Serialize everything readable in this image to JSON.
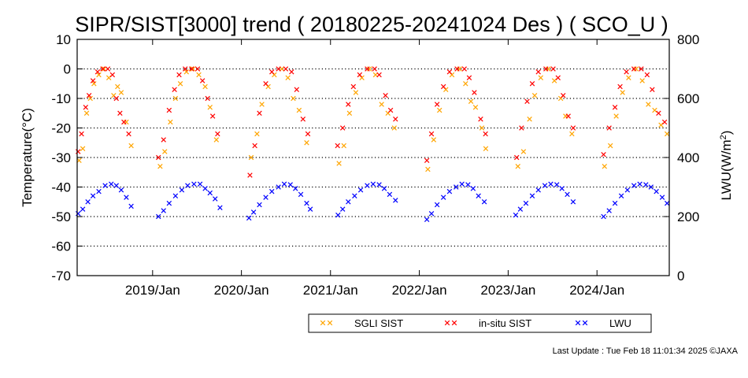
{
  "chart_data": {
    "type": "scatter",
    "title": "SIPR/SIST[3000] trend ( 20180225-20241024 Des ) ( SCO_U )",
    "ylabel": "Temperature(°C)",
    "y2label_main": "LWU(W/m",
    "y2label_sup": "2",
    "y2label_end": ")",
    "ylim": [
      -70,
      10
    ],
    "y_ticks": [
      "10",
      "0",
      "-10",
      "-20",
      "-30",
      "-40",
      "-50",
      "-60",
      "-70"
    ],
    "y2lim": [
      0,
      800
    ],
    "y2_ticks": [
      "800",
      "600",
      "400",
      "200",
      "0"
    ],
    "xlim": [
      "2018-02-25",
      "2024-10-24"
    ],
    "x_ticks": [
      "2019/Jan",
      "2020/Jan",
      "2021/Jan",
      "2022/Jan",
      "2023/Jan",
      "2024/Jan"
    ],
    "x_tick_dates": [
      "2019-01-01",
      "2020-01-01",
      "2021-01-01",
      "2022-01-01",
      "2023-01-01",
      "2024-01-01"
    ],
    "grid": "dotted horizontal lines",
    "legend_position": "bottom-right",
    "marker": "×",
    "series": [
      {
        "name": "SGLI SIST",
        "axis": "left",
        "color": "#ffa500",
        "points": [
          [
            "2018-03-05",
            -31
          ],
          [
            "2018-03-20",
            -27
          ],
          [
            "2018-04-05",
            -15
          ],
          [
            "2018-04-20",
            -10
          ],
          [
            "2018-05-05",
            -5
          ],
          [
            "2018-05-25",
            -2
          ],
          [
            "2018-06-15",
            0
          ],
          [
            "2018-07-05",
            -3
          ],
          [
            "2018-07-25",
            -9
          ],
          [
            "2018-08-10",
            -6
          ],
          [
            "2018-08-25",
            -8
          ],
          [
            "2018-09-15",
            -18
          ],
          [
            "2018-10-05",
            -26
          ],
          [
            "2019-02-01",
            -33
          ],
          [
            "2019-02-20",
            -28
          ],
          [
            "2019-03-15",
            -18
          ],
          [
            "2019-04-05",
            -10
          ],
          [
            "2019-04-25",
            -5
          ],
          [
            "2019-05-20",
            -1
          ],
          [
            "2019-06-15",
            0
          ],
          [
            "2019-07-10",
            -2
          ],
          [
            "2019-08-05",
            -6
          ],
          [
            "2019-08-25",
            -13
          ],
          [
            "2019-09-20",
            -24
          ],
          [
            "2020-02-10",
            -30
          ],
          [
            "2020-03-05",
            -22
          ],
          [
            "2020-03-25",
            -12
          ],
          [
            "2020-04-20",
            -6
          ],
          [
            "2020-05-15",
            -2
          ],
          [
            "2020-06-15",
            0
          ],
          [
            "2020-07-10",
            -3
          ],
          [
            "2020-08-01",
            -10
          ],
          [
            "2020-08-25",
            -14
          ],
          [
            "2020-09-25",
            -25
          ],
          [
            "2021-02-05",
            -32
          ],
          [
            "2021-02-25",
            -26
          ],
          [
            "2021-03-20",
            -15
          ],
          [
            "2021-04-15",
            -8
          ],
          [
            "2021-05-10",
            -3
          ],
          [
            "2021-06-10",
            0
          ],
          [
            "2021-07-05",
            -2
          ],
          [
            "2021-07-30",
            -12
          ],
          [
            "2021-08-25",
            -15
          ],
          [
            "2021-09-20",
            -20
          ],
          [
            "2022-02-05",
            -34
          ],
          [
            "2022-03-01",
            -24
          ],
          [
            "2022-03-25",
            -14
          ],
          [
            "2022-04-20",
            -7
          ],
          [
            "2022-05-15",
            -2
          ],
          [
            "2022-06-15",
            0
          ],
          [
            "2022-07-10",
            -5
          ],
          [
            "2022-08-01",
            -11
          ],
          [
            "2022-08-20",
            -13
          ],
          [
            "2022-09-15",
            -20
          ],
          [
            "2022-10-01",
            -27
          ],
          [
            "2023-02-10",
            -33
          ],
          [
            "2023-03-05",
            -28
          ],
          [
            "2023-03-30",
            -17
          ],
          [
            "2023-04-20",
            -9
          ],
          [
            "2023-05-15",
            -3
          ],
          [
            "2023-06-15",
            0
          ],
          [
            "2023-07-10",
            -4
          ],
          [
            "2023-08-05",
            -10
          ],
          [
            "2023-08-25",
            -16
          ],
          [
            "2023-09-20",
            -22
          ],
          [
            "2024-02-01",
            -33
          ],
          [
            "2024-02-25",
            -26
          ],
          [
            "2024-03-20",
            -16
          ],
          [
            "2024-04-15",
            -8
          ],
          [
            "2024-05-10",
            -3
          ],
          [
            "2024-06-10",
            0
          ],
          [
            "2024-07-05",
            -4
          ],
          [
            "2024-07-30",
            -12
          ],
          [
            "2024-08-25",
            -14
          ],
          [
            "2024-09-20",
            -19
          ],
          [
            "2024-10-15",
            -22
          ]
        ]
      },
      {
        "name": "in-situ SIST",
        "axis": "left",
        "color": "#ff0000",
        "points": [
          [
            "2018-03-01",
            -28
          ],
          [
            "2018-03-15",
            -22
          ],
          [
            "2018-04-01",
            -13
          ],
          [
            "2018-04-15",
            -9
          ],
          [
            "2018-05-01",
            -4
          ],
          [
            "2018-05-20",
            -1
          ],
          [
            "2018-06-10",
            0
          ],
          [
            "2018-07-01",
            0
          ],
          [
            "2018-07-20",
            -2
          ],
          [
            "2018-08-05",
            -10
          ],
          [
            "2018-08-20",
            -15
          ],
          [
            "2018-09-05",
            -18
          ],
          [
            "2018-09-25",
            -22
          ],
          [
            "2019-01-25",
            -30
          ],
          [
            "2019-02-15",
            -24
          ],
          [
            "2019-03-10",
            -14
          ],
          [
            "2019-04-01",
            -7
          ],
          [
            "2019-04-20",
            -2
          ],
          [
            "2019-05-15",
            0
          ],
          [
            "2019-06-10",
            0
          ],
          [
            "2019-07-05",
            0
          ],
          [
            "2019-07-25",
            -4
          ],
          [
            "2019-08-15",
            -10
          ],
          [
            "2019-09-05",
            -16
          ],
          [
            "2019-09-25",
            -22
          ],
          [
            "2020-02-05",
            -36
          ],
          [
            "2020-02-25",
            -26
          ],
          [
            "2020-03-15",
            -15
          ],
          [
            "2020-04-10",
            -5
          ],
          [
            "2020-05-05",
            -1
          ],
          [
            "2020-06-01",
            0
          ],
          [
            "2020-07-01",
            0
          ],
          [
            "2020-07-25",
            -1
          ],
          [
            "2020-08-15",
            -7
          ],
          [
            "2020-09-10",
            -17
          ],
          [
            "2020-09-30",
            -22
          ],
          [
            "2021-01-30",
            -26
          ],
          [
            "2021-02-20",
            -20
          ],
          [
            "2021-03-15",
            -12
          ],
          [
            "2021-04-05",
            -6
          ],
          [
            "2021-05-01",
            -2
          ],
          [
            "2021-06-01",
            0
          ],
          [
            "2021-07-01",
            0
          ],
          [
            "2021-07-20",
            -2
          ],
          [
            "2021-08-15",
            -9
          ],
          [
            "2021-09-05",
            -14
          ],
          [
            "2021-09-25",
            -17
          ],
          [
            "2022-02-01",
            -31
          ],
          [
            "2022-02-20",
            -22
          ],
          [
            "2022-03-15",
            -12
          ],
          [
            "2022-04-10",
            -6
          ],
          [
            "2022-05-05",
            -1
          ],
          [
            "2022-06-05",
            0
          ],
          [
            "2022-07-05",
            0
          ],
          [
            "2022-07-25",
            -3
          ],
          [
            "2022-08-15",
            -8
          ],
          [
            "2022-09-10",
            -17
          ],
          [
            "2022-09-30",
            -22
          ],
          [
            "2023-02-05",
            -30
          ],
          [
            "2023-02-25",
            -20
          ],
          [
            "2023-03-20",
            -11
          ],
          [
            "2023-04-10",
            -5
          ],
          [
            "2023-05-05",
            -1
          ],
          [
            "2023-06-05",
            0
          ],
          [
            "2023-07-05",
            0
          ],
          [
            "2023-07-25",
            -3
          ],
          [
            "2023-08-15",
            -9
          ],
          [
            "2023-09-05",
            -16
          ],
          [
            "2023-09-25",
            -20
          ],
          [
            "2024-01-28",
            -29
          ],
          [
            "2024-02-20",
            -20
          ],
          [
            "2024-03-15",
            -13
          ],
          [
            "2024-04-05",
            -6
          ],
          [
            "2024-05-01",
            -1
          ],
          [
            "2024-06-01",
            0
          ],
          [
            "2024-07-01",
            0
          ],
          [
            "2024-07-25",
            -2
          ],
          [
            "2024-08-15",
            -7
          ],
          [
            "2024-09-10",
            -15
          ],
          [
            "2024-10-05",
            -18
          ]
        ]
      },
      {
        "name": "LWU",
        "axis": "right",
        "color": "#0000ff",
        "points": [
          [
            "2018-03-01",
            210
          ],
          [
            "2018-03-20",
            225
          ],
          [
            "2018-04-10",
            250
          ],
          [
            "2018-05-01",
            270
          ],
          [
            "2018-05-25",
            285
          ],
          [
            "2018-06-20",
            305
          ],
          [
            "2018-07-15",
            310
          ],
          [
            "2018-08-05",
            305
          ],
          [
            "2018-08-25",
            290
          ],
          [
            "2018-09-15",
            265
          ],
          [
            "2018-10-05",
            235
          ],
          [
            "2019-01-25",
            200
          ],
          [
            "2019-02-15",
            220
          ],
          [
            "2019-03-10",
            245
          ],
          [
            "2019-04-05",
            270
          ],
          [
            "2019-05-01",
            290
          ],
          [
            "2019-05-25",
            305
          ],
          [
            "2019-06-20",
            310
          ],
          [
            "2019-07-15",
            310
          ],
          [
            "2019-08-05",
            295
          ],
          [
            "2019-08-25",
            280
          ],
          [
            "2019-09-15",
            260
          ],
          [
            "2019-10-05",
            230
          ],
          [
            "2020-02-01",
            195
          ],
          [
            "2020-02-20",
            215
          ],
          [
            "2020-03-15",
            240
          ],
          [
            "2020-04-10",
            265
          ],
          [
            "2020-05-05",
            285
          ],
          [
            "2020-06-01",
            300
          ],
          [
            "2020-06-25",
            310
          ],
          [
            "2020-07-20",
            308
          ],
          [
            "2020-08-10",
            295
          ],
          [
            "2020-09-01",
            275
          ],
          [
            "2020-09-25",
            245
          ],
          [
            "2020-10-10",
            225
          ],
          [
            "2021-02-01",
            205
          ],
          [
            "2021-02-20",
            225
          ],
          [
            "2021-03-15",
            250
          ],
          [
            "2021-04-10",
            270
          ],
          [
            "2021-05-05",
            290
          ],
          [
            "2021-06-01",
            305
          ],
          [
            "2021-06-25",
            310
          ],
          [
            "2021-07-20",
            308
          ],
          [
            "2021-08-10",
            295
          ],
          [
            "2021-09-01",
            275
          ],
          [
            "2021-09-25",
            255
          ],
          [
            "2022-02-01",
            190
          ],
          [
            "2022-02-20",
            210
          ],
          [
            "2022-03-15",
            240
          ],
          [
            "2022-04-10",
            265
          ],
          [
            "2022-05-05",
            285
          ],
          [
            "2022-06-01",
            300
          ],
          [
            "2022-06-25",
            310
          ],
          [
            "2022-07-20",
            308
          ],
          [
            "2022-08-10",
            295
          ],
          [
            "2022-09-01",
            270
          ],
          [
            "2022-09-25",
            250
          ],
          [
            "2023-02-01",
            205
          ],
          [
            "2023-02-20",
            225
          ],
          [
            "2023-03-15",
            245
          ],
          [
            "2023-04-10",
            270
          ],
          [
            "2023-05-05",
            290
          ],
          [
            "2023-06-01",
            305
          ],
          [
            "2023-06-25",
            310
          ],
          [
            "2023-07-20",
            308
          ],
          [
            "2023-08-10",
            295
          ],
          [
            "2023-09-01",
            275
          ],
          [
            "2023-09-25",
            250
          ],
          [
            "2024-01-28",
            200
          ],
          [
            "2024-02-20",
            220
          ],
          [
            "2024-03-15",
            245
          ],
          [
            "2024-04-10",
            270
          ],
          [
            "2024-05-05",
            290
          ],
          [
            "2024-06-01",
            305
          ],
          [
            "2024-06-25",
            310
          ],
          [
            "2024-07-20",
            308
          ],
          [
            "2024-08-10",
            300
          ],
          [
            "2024-09-01",
            285
          ],
          [
            "2024-09-25",
            265
          ],
          [
            "2024-10-15",
            245
          ]
        ]
      }
    ]
  },
  "footer": {
    "last_update": "Last Update : Tue Feb 18 11:01:34 2025  ©JAXA"
  }
}
